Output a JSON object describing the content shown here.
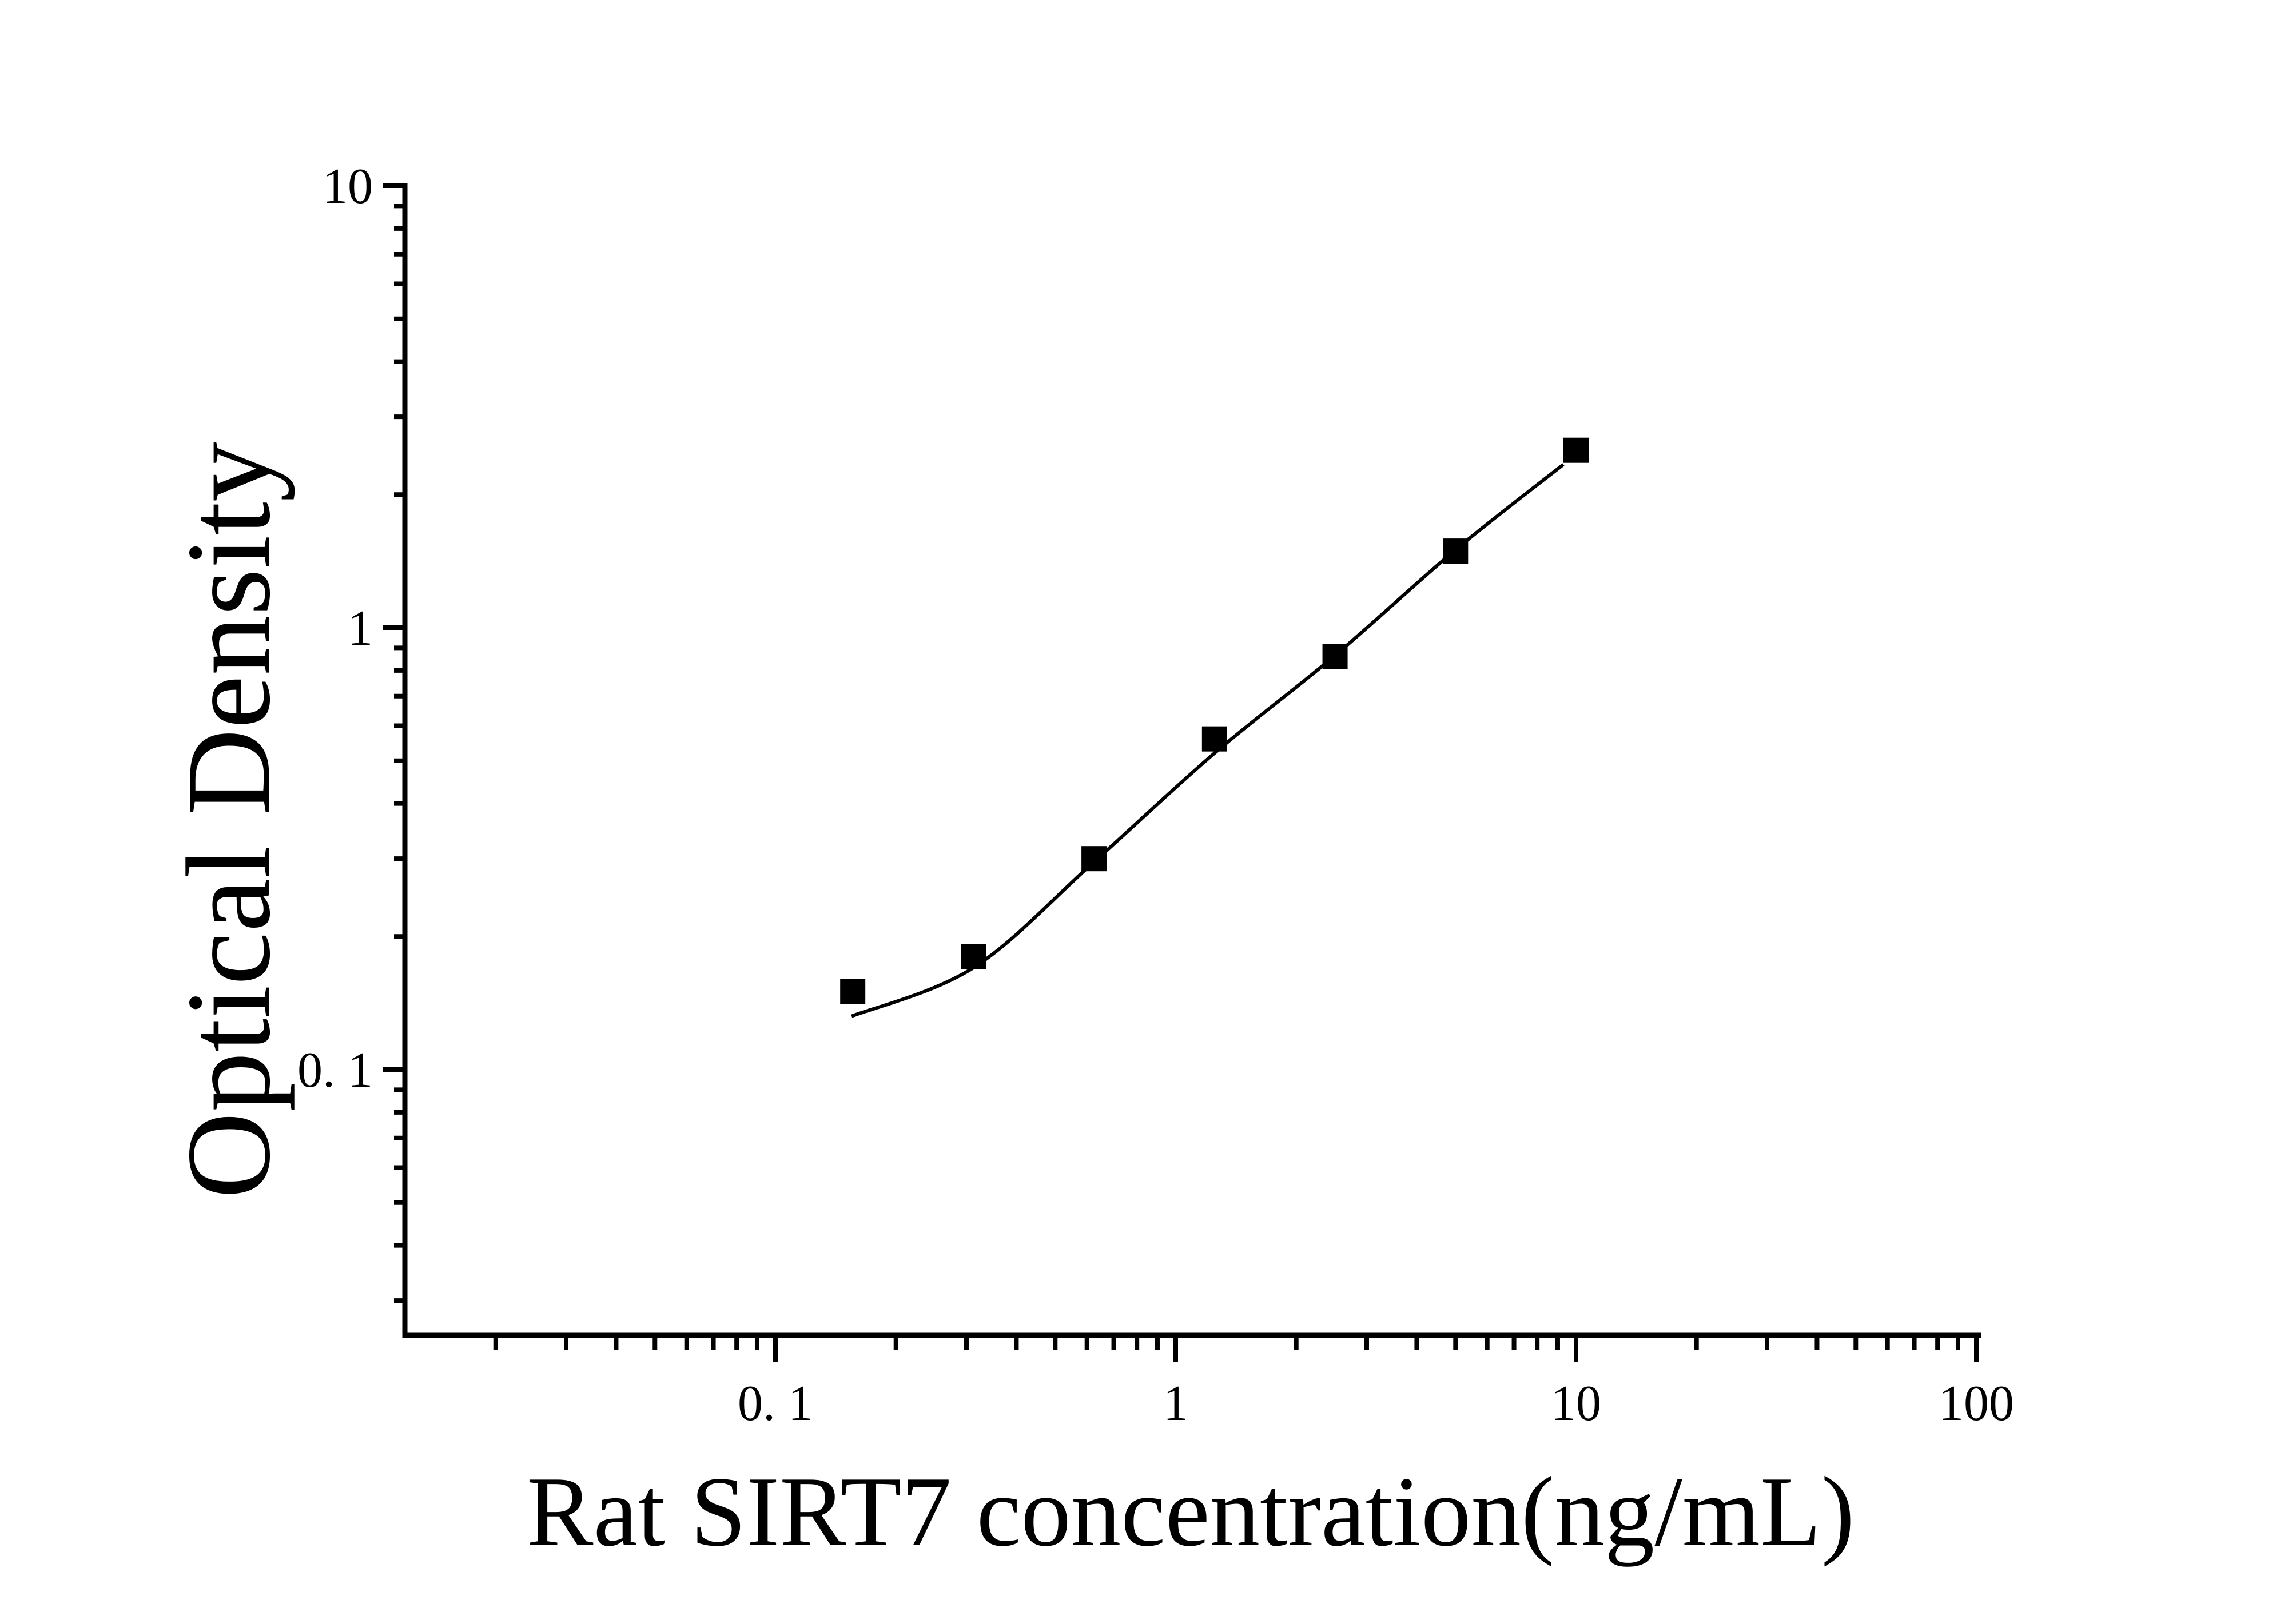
{
  "figure": {
    "background_color": "#ffffff",
    "ink_color": "#000000"
  },
  "chart_data": {
    "type": "scatter",
    "title": "",
    "xlabel": "Rat SIRT7 concentration(ng/mL)",
    "ylabel": "Optical Density",
    "x_scale": "log",
    "y_scale": "log",
    "xlim": [
      0.0117,
      100
    ],
    "ylim": [
      0.025,
      10
    ],
    "grid": false,
    "legend": null,
    "x_major_ticks": [
      {
        "value": 0.1,
        "label": "0. 1"
      },
      {
        "value": 1,
        "label": "1"
      },
      {
        "value": 10,
        "label": "10"
      },
      {
        "value": 100,
        "label": "100"
      }
    ],
    "y_major_ticks": [
      {
        "value": 10,
        "label": "10"
      },
      {
        "value": 1,
        "label": "1"
      },
      {
        "value": 0.1,
        "label": "0. 1"
      }
    ],
    "x_minor_ticks": [
      0.02,
      0.03,
      0.04,
      0.05,
      0.06,
      0.07,
      0.08,
      0.09,
      0.2,
      0.3,
      0.4,
      0.5,
      0.6,
      0.7,
      0.8,
      0.9,
      2,
      3,
      4,
      5,
      6,
      7,
      8,
      9,
      20,
      30,
      40,
      50,
      60,
      70,
      80,
      90
    ],
    "y_minor_ticks": [
      0.03,
      0.04,
      0.05,
      0.06,
      0.07,
      0.08,
      0.09,
      0.2,
      0.3,
      0.4,
      0.5,
      0.6,
      0.7,
      0.8,
      0.9,
      2,
      3,
      4,
      5,
      6,
      7,
      8,
      9
    ],
    "series": [
      {
        "name": "standard-points",
        "marker": "filled-square",
        "marker_color": "#000000",
        "x": [
          0.156,
          0.3125,
          0.625,
          1.25,
          2.5,
          5,
          10
        ],
        "y": [
          0.15,
          0.18,
          0.3,
          0.56,
          0.86,
          1.49,
          2.52
        ]
      }
    ],
    "fit_curve": {
      "name": "standard-curve-fit",
      "color": "#000000",
      "x": [
        0.155,
        0.3125,
        0.625,
        1.25,
        2.5,
        5,
        9.3
      ],
      "y": [
        0.132,
        0.17,
        0.295,
        0.52,
        0.865,
        1.5,
        2.34
      ]
    }
  }
}
